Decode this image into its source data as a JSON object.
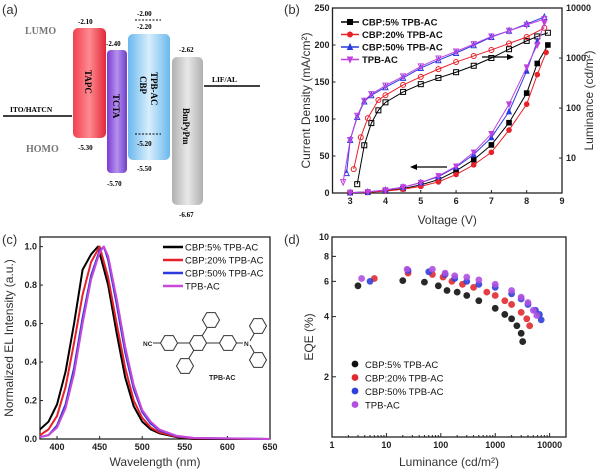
{
  "figure_labels": {
    "a": "(a)",
    "b": "(b)",
    "c": "(c)",
    "d": "(d)"
  },
  "chart_data": [
    {
      "panel": "(a)",
      "type": "diagram",
      "level_labels": {
        "lumo": "LUMO",
        "homo": "HOMO"
      },
      "electrodes": {
        "anode": "ITO/HATCN",
        "cathode": "LIF/AL"
      },
      "layers": [
        {
          "name": "TAPC",
          "lumo": "-2.10",
          "homo": "-5.30",
          "color": "#e8323c"
        },
        {
          "name": "TCTA",
          "lumo": "-2.40",
          "homo": "-5.70",
          "color": "#8a4fd8"
        },
        {
          "name": "TPB-AC",
          "name2": "CBP",
          "lumo": "-2.20",
          "homo": "-5.50",
          "dopant_lumo": "-2.00",
          "dopant_homo": "-5.20",
          "color": "#7cc3f0"
        },
        {
          "name": "BmPyPm",
          "lumo": "-2.62",
          "homo": "-6.67",
          "color": "#c4c4c4"
        }
      ]
    },
    {
      "panel": "(b)",
      "type": "line",
      "xlabel": "Voltage (V)",
      "ylabel": "Current Density (mA/cm²)",
      "y2label": "Luminance (cd/m²)",
      "xlim": [
        2.5,
        9
      ],
      "ylim": [
        0,
        250
      ],
      "y2lim": [
        2,
        10000
      ],
      "y2scale": "log",
      "xticks": [
        "3",
        "4",
        "5",
        "6",
        "7",
        "8",
        "9"
      ],
      "yticks": [
        "0",
        "50",
        "100",
        "150",
        "200",
        "250"
      ],
      "y2ticks": [
        "10",
        "100",
        "1000",
        "10000"
      ],
      "legend_position": "top-left",
      "series": [
        {
          "name": "CBP:5% TPB-AC",
          "color": "#000000",
          "marker": "square",
          "current_density": {
            "V": [
              3,
              3.5,
              4,
              4.5,
              5,
              5.5,
              6,
              6.5,
              7,
              7.5,
              8,
              8.3,
              8.6
            ],
            "J": [
              0.5,
              1,
              3,
              6,
              11,
              18,
              30,
              45,
              65,
              95,
              135,
              175,
              200
            ]
          },
          "luminance": {
            "V": [
              3.2,
              3.4,
              3.6,
              3.8,
              4.0,
              4.5,
              5.0,
              5.5,
              6.0,
              6.5,
              7.0,
              7.5,
              8.0,
              8.3,
              8.6
            ],
            "L": [
              3,
              18,
              50,
              90,
              130,
              210,
              300,
              400,
              520,
              700,
              1000,
              1500,
              2200,
              2700,
              3200
            ]
          }
        },
        {
          "name": "CBP:20% TPB-AC",
          "color": "#e8202a",
          "marker": "circle",
          "current_density": {
            "V": [
              3,
              3.5,
              4,
              4.5,
              5,
              5.5,
              6,
              6.5,
              7,
              7.5,
              8,
              8.3,
              8.55
            ],
            "J": [
              0.5,
              1,
              2.5,
              5,
              9,
              15,
              25,
              38,
              55,
              85,
              120,
              160,
              190
            ]
          },
          "luminance": {
            "V": [
              3.1,
              3.3,
              3.5,
              3.8,
              4.0,
              4.5,
              5.0,
              5.5,
              6.0,
              6.5,
              7.0,
              7.5,
              8.0,
              8.5
            ],
            "L": [
              6,
              26,
              63,
              145,
              180,
              290,
              420,
              600,
              830,
              1100,
              1450,
              1950,
              2630,
              4000
            ]
          }
        },
        {
          "name": "CBP:50% TPB-AC",
          "color": "#2a3ce0",
          "marker": "triangle-up",
          "current_density": {
            "V": [
              3,
              3.5,
              4,
              4.5,
              5,
              5.5,
              6,
              6.5,
              7,
              7.5,
              8,
              8.3
            ],
            "J": [
              0.5,
              1.5,
              4,
              8,
              14,
              22,
              35,
              52,
              75,
              110,
              165,
              205
            ]
          },
          "luminance": {
            "V": [
              2.9,
              3.0,
              3.2,
              3.4,
              3.6,
              4.0,
              4.5,
              5.0,
              5.5,
              6.0,
              6.5,
              7.0,
              7.5,
              8.0,
              8.5
            ],
            "L": [
              5,
              23,
              66,
              135,
              180,
              260,
              400,
              630,
              900,
              1260,
              1800,
              2630,
              3500,
              4800,
              6600
            ]
          }
        },
        {
          "name": "TPB-AC",
          "color": "#c040e0",
          "marker": "triangle-down",
          "current_density": {
            "V": [
              3,
              3.5,
              4,
              4.5,
              5,
              5.5,
              6,
              6.5,
              7,
              7.5,
              8,
              8.3,
              8.5
            ],
            "J": [
              0.5,
              1.5,
              4,
              8,
              14,
              23,
              36,
              55,
              80,
              120,
              170,
              200,
              230
            ]
          },
          "luminance": {
            "V": [
              2.8,
              3.0,
              3.2,
              3.4,
              3.6,
              4.0,
              4.5,
              5.0,
              5.5,
              6.0,
              6.5,
              7.0,
              7.5,
              8.0,
              8.5
            ],
            "L": [
              3.3,
              23,
              70,
              140,
              190,
              280,
              430,
              680,
              980,
              1350,
              1900,
              2700,
              3500,
              4600,
              6000
            ]
          }
        }
      ]
    },
    {
      "panel": "(c)",
      "type": "line",
      "xlabel": "Wavelength (nm)",
      "ylabel": "Normalized EL Intensity (a.u.)",
      "xlim": [
        380,
        650
      ],
      "ylim": [
        0,
        1.05
      ],
      "xticks": [
        "400",
        "450",
        "500",
        "550",
        "600",
        "650"
      ],
      "yticks": [
        "0.0",
        "0.2",
        "0.4",
        "0.6",
        "0.8",
        "1.0"
      ],
      "legend_position": "top-right",
      "molecule": {
        "label": "TPB-AC",
        "groups": {
          "nitrile": "NC",
          "amine": "N"
        }
      },
      "series": [
        {
          "name": "CBP:5% TPB-AC",
          "color": "#000000",
          "x": [
            380,
            390,
            400,
            410,
            420,
            430,
            440,
            448,
            460,
            470,
            480,
            490,
            500,
            510,
            520,
            540,
            560,
            650
          ],
          "y": [
            0.05,
            0.09,
            0.18,
            0.35,
            0.6,
            0.88,
            0.96,
            1.0,
            0.8,
            0.55,
            0.32,
            0.17,
            0.09,
            0.05,
            0.03,
            0.01,
            0,
            0
          ]
        },
        {
          "name": "CBP:20% TPB-AC",
          "color": "#e8202a",
          "x": [
            380,
            390,
            400,
            410,
            420,
            430,
            440,
            450,
            460,
            470,
            480,
            490,
            500,
            510,
            520,
            540,
            560,
            650
          ],
          "y": [
            0.02,
            0.05,
            0.12,
            0.27,
            0.5,
            0.75,
            0.92,
            1.0,
            0.84,
            0.6,
            0.37,
            0.2,
            0.11,
            0.06,
            0.035,
            0.012,
            0.003,
            0
          ]
        },
        {
          "name": "CBP:50% TPB-AC",
          "color": "#2a3ce0",
          "x": [
            380,
            390,
            400,
            410,
            420,
            430,
            440,
            450,
            455,
            460,
            470,
            480,
            490,
            500,
            510,
            520,
            540,
            560,
            650
          ],
          "y": [
            0.01,
            0.02,
            0.07,
            0.18,
            0.37,
            0.63,
            0.85,
            0.98,
            1.0,
            0.93,
            0.7,
            0.45,
            0.26,
            0.14,
            0.08,
            0.045,
            0.015,
            0.005,
            0
          ]
        },
        {
          "name": "TPB-AC",
          "color": "#c848d8",
          "x": [
            380,
            390,
            400,
            410,
            420,
            430,
            440,
            450,
            455,
            460,
            470,
            480,
            490,
            500,
            510,
            520,
            540,
            560,
            650
          ],
          "y": [
            0.01,
            0.02,
            0.06,
            0.16,
            0.34,
            0.6,
            0.83,
            0.97,
            1.0,
            0.95,
            0.73,
            0.48,
            0.28,
            0.15,
            0.09,
            0.05,
            0.017,
            0.006,
            0
          ]
        }
      ]
    },
    {
      "panel": "(d)",
      "type": "scatter",
      "xlabel": "Luminance (cd/m²)",
      "ylabel": "EQE (%)",
      "xscale": "log",
      "yscale": "log",
      "xlim": [
        1,
        20000
      ],
      "ylim": [
        1,
        10
      ],
      "xticks": [
        "1",
        "10",
        "100",
        "1000",
        "10000"
      ],
      "yticks": [
        "2",
        "4",
        "6",
        "8",
        "10"
      ],
      "legend_position": "bottom-left",
      "series": [
        {
          "name": "CBP:5% TPB-AC",
          "color": "#111111",
          "x": [
            3,
            20,
            50,
            90,
            130,
            200,
            300,
            500,
            1000,
            1500,
            2000,
            2500,
            3000,
            3200
          ],
          "y": [
            5.7,
            6.05,
            5.95,
            5.7,
            5.4,
            5.3,
            5.1,
            4.8,
            4.4,
            4.1,
            3.9,
            3.6,
            3.3,
            3.0
          ]
        },
        {
          "name": "CBP:20% TPB-AC",
          "color": "#e02a30",
          "x": [
            6,
            25,
            70,
            110,
            160,
            250,
            400,
            700,
            1000,
            1500,
            2000,
            3000,
            3800,
            4300
          ],
          "y": [
            6.2,
            6.6,
            6.5,
            6.3,
            6.0,
            5.8,
            5.6,
            5.3,
            5.1,
            4.8,
            4.6,
            4.2,
            3.9,
            3.6
          ]
        },
        {
          "name": "CBP:50% TPB-AC",
          "color": "#3040d8",
          "x": [
            5,
            25,
            60,
            120,
            180,
            300,
            500,
            1000,
            2000,
            3000,
            4000,
            5500,
            6500,
            7000
          ],
          "y": [
            6.0,
            6.8,
            6.7,
            6.5,
            6.2,
            6.0,
            5.8,
            5.6,
            5.2,
            4.9,
            4.6,
            4.3,
            4.1,
            3.85
          ]
        },
        {
          "name": "TPB-AC",
          "color": "#b050e0",
          "x": [
            3.5,
            24,
            70,
            120,
            180,
            300,
            500,
            1000,
            2000,
            3000,
            4000,
            5000,
            5800
          ],
          "y": [
            6.2,
            6.9,
            6.9,
            6.6,
            6.4,
            6.3,
            6.1,
            5.8,
            5.4,
            5.0,
            4.7,
            4.3,
            4.05
          ]
        }
      ]
    }
  ]
}
